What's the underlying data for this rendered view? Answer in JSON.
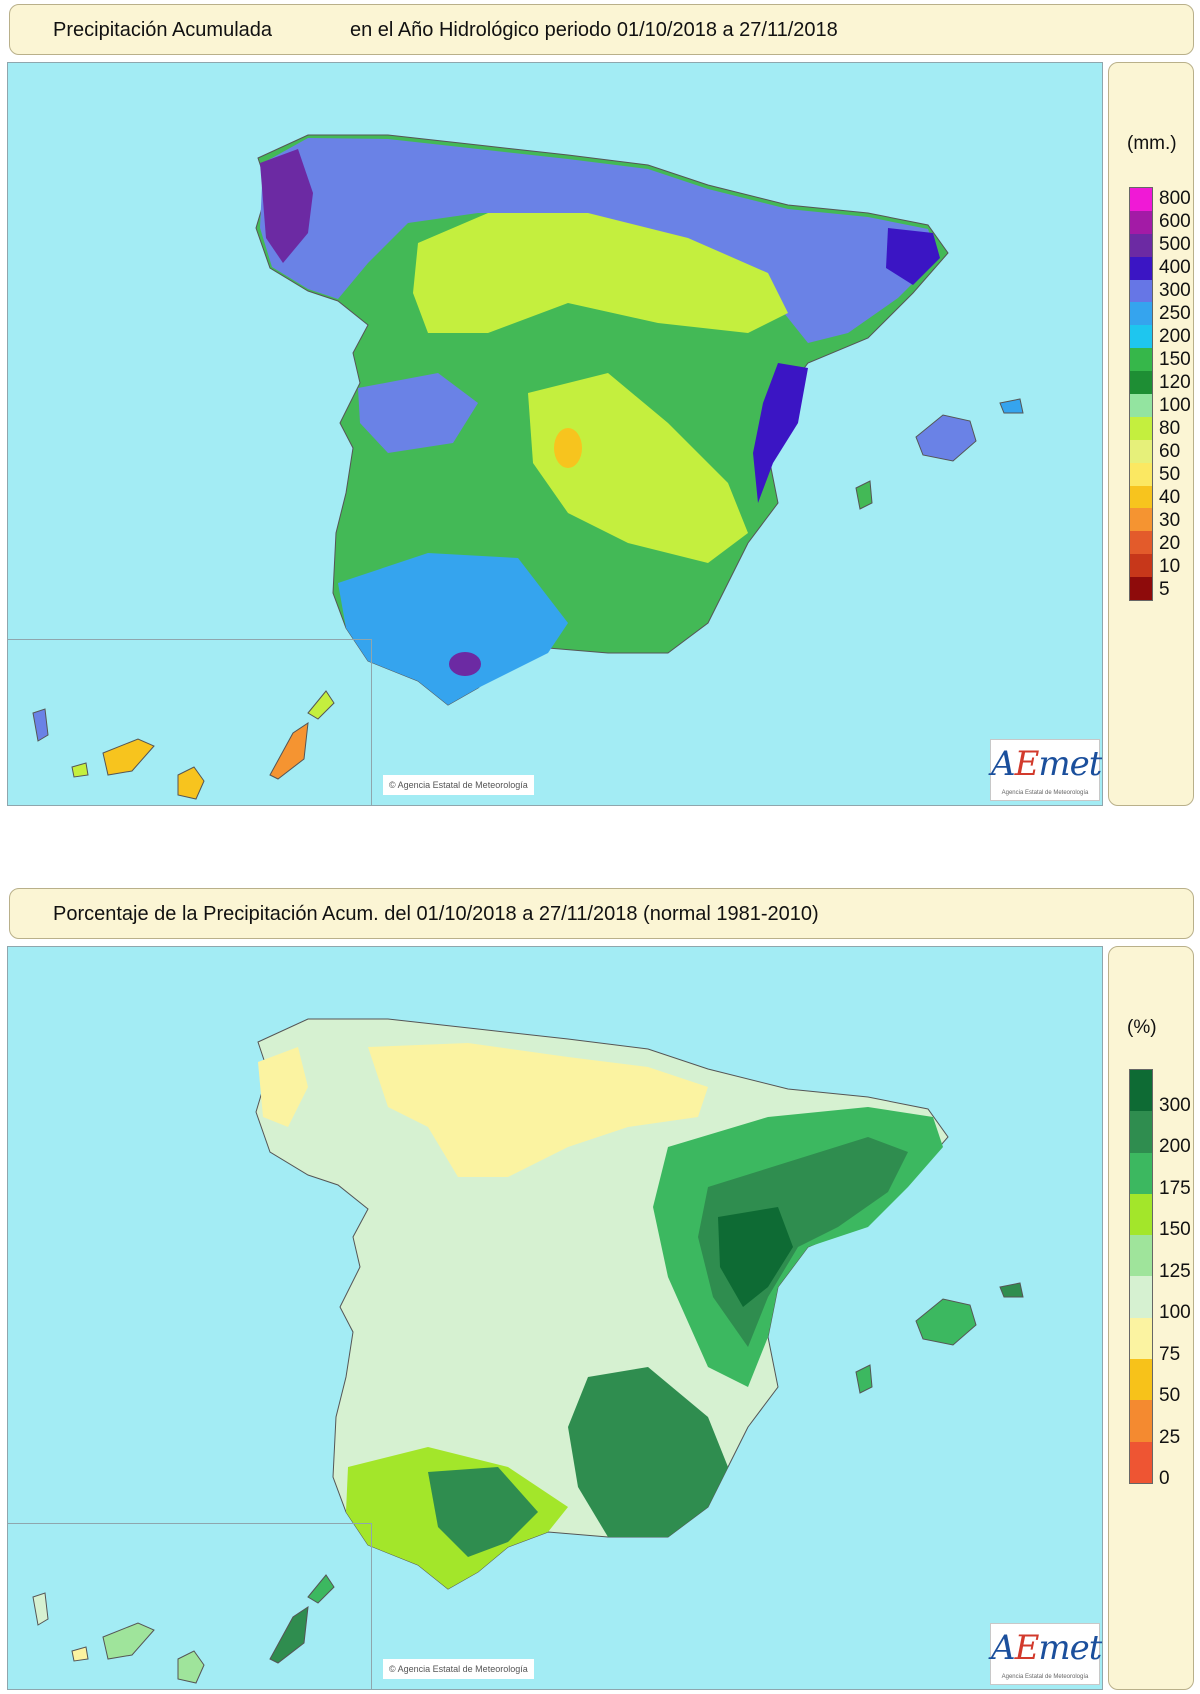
{
  "maps": [
    {
      "title_left": "Precipitación Acumulada",
      "title_right": "en el Año Hidrológico  periodo 01/10/2018 a 27/11/2018",
      "legend": {
        "unit": "(mm.)",
        "labels": [
          "800",
          "600",
          "500",
          "400",
          "300",
          "250",
          "200",
          "150",
          "120",
          "100",
          "80",
          "60",
          "50",
          "40",
          "30",
          "20",
          "10",
          "5"
        ],
        "colors": [
          "#f019d6",
          "#a31ba6",
          "#6c2aa3",
          "#3b15c4",
          "#6676e6",
          "#35a4ee",
          "#1ec6ef",
          "#36b74a",
          "#1e8e34",
          "#93e4a0",
          "#c4ef3e",
          "#e6f07a",
          "#fbe862",
          "#f7c41e",
          "#f59431",
          "#e35b2b",
          "#c7371a",
          "#8e0b0b"
        ]
      },
      "copyright": "© Agencia Estatal de Meteorología",
      "logo": {
        "brand_first": "A",
        "brand_accent": "E",
        "brand_rest": "met",
        "subtitle": "Agencia Estatal de Meteorología"
      }
    },
    {
      "title_left": "Porcentaje de la Precipitación Acum. del 01/10/2018 a  27/11/2018  (normal 1981-2010)",
      "title_right": "",
      "legend": {
        "unit": "(%)",
        "labels": [
          "300",
          "200",
          "175",
          "150",
          "125",
          "100",
          "75",
          "50",
          "25",
          "0"
        ],
        "colors": [
          "#0e6b34",
          "#2f8d4f",
          "#3cb860",
          "#a3e62a",
          "#9fe49b",
          "#d6f1d1",
          "#fbf3a1",
          "#f7c21a",
          "#f48a30",
          "#ee5533"
        ]
      },
      "copyright": "© Agencia Estatal de Meteorología",
      "logo": {
        "brand_first": "A",
        "brand_accent": "E",
        "brand_rest": "met",
        "subtitle": "Agencia Estatal de Meteorología"
      }
    }
  ]
}
